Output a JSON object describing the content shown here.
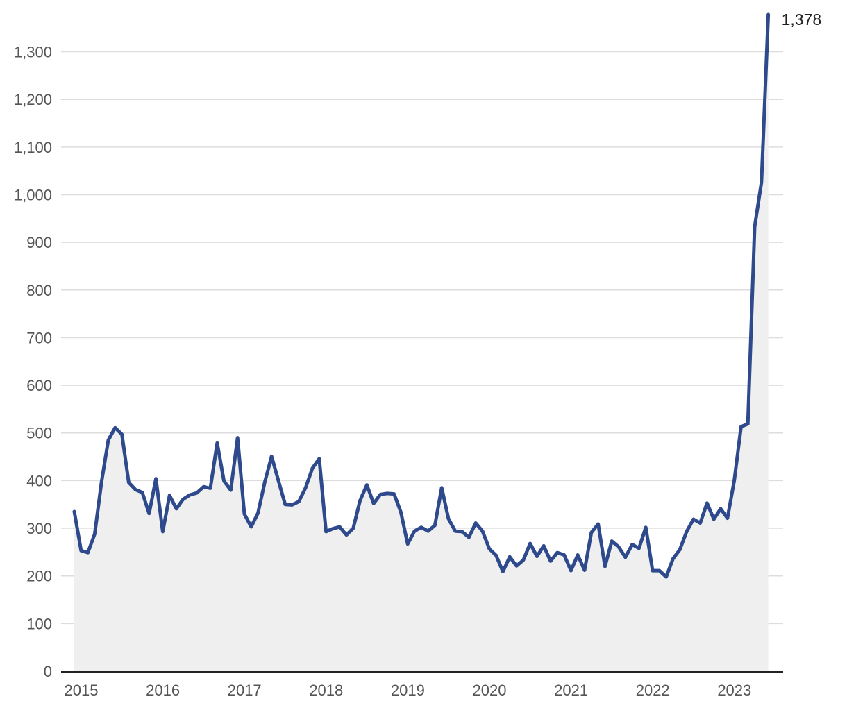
{
  "chart_data": {
    "type": "area",
    "title": "",
    "xlabel": "",
    "ylabel": "",
    "ylim": [
      0,
      1378
    ],
    "xlim": [
      "2015-01",
      "2023-07"
    ],
    "grid": true,
    "legend": "none",
    "colors": {
      "line": "#2e4a8c",
      "fill": "#efeff0",
      "grid": "#dddddd",
      "axis": "#222222",
      "tick_text": "#555555"
    },
    "y_ticks": [
      {
        "value": 0,
        "label": "0"
      },
      {
        "value": 100,
        "label": "100"
      },
      {
        "value": 200,
        "label": "200"
      },
      {
        "value": 300,
        "label": "300"
      },
      {
        "value": 400,
        "label": "400"
      },
      {
        "value": 500,
        "label": "500"
      },
      {
        "value": 600,
        "label": "600"
      },
      {
        "value": 700,
        "label": "700"
      },
      {
        "value": 800,
        "label": "800"
      },
      {
        "value": 900,
        "label": "900"
      },
      {
        "value": 1000,
        "label": "1,000"
      },
      {
        "value": 1100,
        "label": "1,100"
      },
      {
        "value": 1200,
        "label": "1,200"
      },
      {
        "value": 1300,
        "label": "1,300"
      }
    ],
    "x_ticks": [
      {
        "value": "2015-01",
        "label": "2015"
      },
      {
        "value": "2016-01",
        "label": "2016"
      },
      {
        "value": "2017-01",
        "label": "2017"
      },
      {
        "value": "2018-01",
        "label": "2018"
      },
      {
        "value": "2019-01",
        "label": "2019"
      },
      {
        "value": "2020-01",
        "label": "2020"
      },
      {
        "value": "2021-01",
        "label": "2021"
      },
      {
        "value": "2022-01",
        "label": "2022"
      },
      {
        "value": "2023-01",
        "label": "2023"
      }
    ],
    "end_label": "1,378",
    "series": [
      {
        "x": [
          "2015-01",
          "2015-02",
          "2015-03",
          "2015-04",
          "2015-05",
          "2015-06",
          "2015-07",
          "2015-08",
          "2015-09",
          "2015-10",
          "2015-11",
          "2015-12",
          "2016-01",
          "2016-02",
          "2016-03",
          "2016-04",
          "2016-05",
          "2016-06",
          "2016-07",
          "2016-08",
          "2016-09",
          "2016-10",
          "2016-11",
          "2016-12",
          "2017-01",
          "2017-02",
          "2017-03",
          "2017-04",
          "2017-05",
          "2017-06",
          "2017-07",
          "2017-08",
          "2017-09",
          "2017-10",
          "2017-11",
          "2017-12",
          "2018-01",
          "2018-02",
          "2018-03",
          "2018-04",
          "2018-05",
          "2018-06",
          "2018-07",
          "2018-08",
          "2018-09",
          "2018-10",
          "2018-11",
          "2018-12",
          "2019-01",
          "2019-02",
          "2019-03",
          "2019-04",
          "2019-05",
          "2019-06",
          "2019-07",
          "2019-08",
          "2019-09",
          "2019-10",
          "2019-11",
          "2019-12",
          "2020-01",
          "2020-02",
          "2020-03",
          "2020-04",
          "2020-05",
          "2020-06",
          "2020-07",
          "2020-08",
          "2020-09",
          "2020-10",
          "2020-11",
          "2020-12",
          "2021-01",
          "2021-02",
          "2021-03",
          "2021-04",
          "2021-05",
          "2021-06",
          "2021-07",
          "2021-08",
          "2021-09",
          "2021-10",
          "2021-11",
          "2021-12",
          "2022-01",
          "2022-02",
          "2022-03",
          "2022-04",
          "2022-05",
          "2022-06",
          "2022-07",
          "2022-08",
          "2022-09",
          "2022-10",
          "2022-11",
          "2022-12",
          "2023-01",
          "2023-02",
          "2023-03",
          "2023-04",
          "2023-05",
          "2023-06",
          "2023-07"
        ],
        "values": [
          335,
          253,
          249,
          288,
          397,
          485,
          511,
          497,
          396,
          381,
          375,
          331,
          404,
          293,
          369,
          341,
          361,
          370,
          374,
          387,
          384,
          479,
          399,
          380,
          490,
          330,
          303,
          332,
          397,
          451,
          400,
          350,
          349,
          356,
          385,
          426,
          446,
          293,
          299,
          303,
          286,
          300,
          358,
          391,
          352,
          371,
          373,
          372,
          334,
          267,
          294,
          302,
          294,
          306,
          385,
          320,
          294,
          293,
          281,
          311,
          294,
          257,
          243,
          209,
          240,
          221,
          233,
          268,
          241,
          263,
          231,
          249,
          244,
          211,
          244,
          212,
          291,
          309,
          220,
          273,
          261,
          239,
          266,
          258,
          302,
          211,
          211,
          198,
          236,
          255,
          293,
          319,
          311,
          353,
          319,
          341,
          321,
          400,
          513,
          519,
          933,
          1026,
          1378
        ]
      }
    ]
  }
}
